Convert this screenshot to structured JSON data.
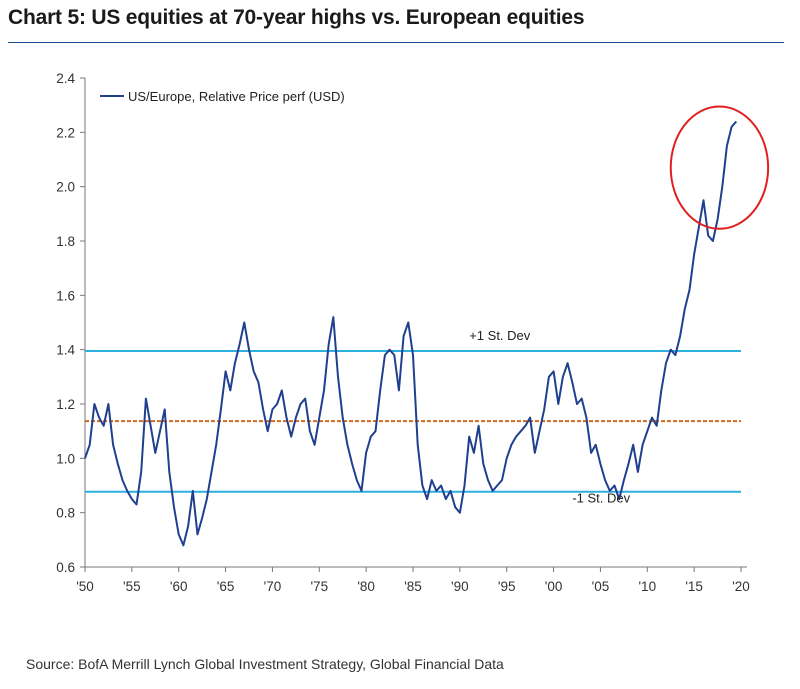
{
  "title": "Chart 5: US equities at 70-year highs vs. European equities",
  "source": "Source: BofA Merrill Lynch Global Investment Strategy, Global Financial Data",
  "chart_data": {
    "type": "line",
    "title": "Chart 5: US equities at 70-year highs vs. European equities",
    "xlabel": "",
    "ylabel": "",
    "xlim": [
      1950,
      2020
    ],
    "ylim": [
      0.6,
      2.4
    ],
    "yticks": [
      0.6,
      0.8,
      1.0,
      1.2,
      1.4,
      1.6,
      1.8,
      2.0,
      2.2,
      2.4
    ],
    "ytick_labels": [
      "0.6",
      "0.8",
      "1.0",
      "1.2",
      "1.4",
      "1.6",
      "1.8",
      "2.0",
      "2.2",
      "2.4"
    ],
    "xticks": [
      1950,
      1955,
      1960,
      1965,
      1970,
      1975,
      1980,
      1985,
      1990,
      1995,
      2000,
      2005,
      2010,
      2015,
      2020
    ],
    "xtick_labels": [
      "'50",
      "'55",
      "'60",
      "'65",
      "'70",
      "'75",
      "'80",
      "'85",
      "'90",
      "'95",
      "'00",
      "'05",
      "'10",
      "'15",
      "'20"
    ],
    "legend_position": "top-left",
    "colors": {
      "series": "#1f3f8f",
      "stdev": "#2bb0e0",
      "mean": "#d2691e",
      "highlight": "#e02020"
    },
    "series": [
      {
        "name": "US/Europe, Relative Price perf (USD)",
        "x": [
          1950,
          1950.5,
          1951,
          1951.5,
          1952,
          1952.5,
          1953,
          1953.5,
          1954,
          1954.5,
          1955,
          1955.5,
          1956,
          1956.5,
          1957,
          1957.5,
          1958,
          1958.5,
          1959,
          1959.5,
          1960,
          1960.5,
          1961,
          1961.5,
          1962,
          1962.5,
          1963,
          1963.5,
          1964,
          1964.5,
          1965,
          1965.5,
          1966,
          1966.5,
          1967,
          1967.5,
          1968,
          1968.5,
          1969,
          1969.5,
          1970,
          1970.5,
          1971,
          1971.5,
          1972,
          1972.5,
          1973,
          1973.5,
          1974,
          1974.5,
          1975,
          1975.5,
          1976,
          1976.5,
          1977,
          1977.5,
          1978,
          1978.5,
          1979,
          1979.5,
          1980,
          1980.5,
          1981,
          1981.5,
          1982,
          1982.5,
          1983,
          1983.5,
          1984,
          1984.5,
          1985,
          1985.5,
          1986,
          1986.5,
          1987,
          1987.5,
          1988,
          1988.5,
          1989,
          1989.5,
          1990,
          1990.5,
          1991,
          1991.5,
          1992,
          1992.5,
          1993,
          1993.5,
          1994,
          1994.5,
          1995,
          1995.5,
          1996,
          1996.5,
          1997,
          1997.5,
          1998,
          1998.5,
          1999,
          1999.5,
          2000,
          2000.5,
          2001,
          2001.5,
          2002,
          2002.5,
          2003,
          2003.5,
          2004,
          2004.5,
          2005,
          2005.5,
          2006,
          2006.5,
          2007,
          2007.5,
          2008,
          2008.5,
          2009,
          2009.5,
          2010,
          2010.5,
          2011,
          2011.5,
          2012,
          2012.5,
          2013,
          2013.5,
          2014,
          2014.5,
          2015,
          2015.5,
          2016,
          2016.5,
          2017,
          2017.5,
          2018,
          2018.5,
          2019,
          2019.5
        ],
        "values": [
          1.0,
          1.05,
          1.2,
          1.15,
          1.12,
          1.2,
          1.05,
          0.98,
          0.92,
          0.88,
          0.85,
          0.83,
          0.95,
          1.22,
          1.12,
          1.02,
          1.1,
          1.18,
          0.95,
          0.82,
          0.72,
          0.68,
          0.75,
          0.88,
          0.72,
          0.78,
          0.85,
          0.95,
          1.05,
          1.18,
          1.32,
          1.25,
          1.35,
          1.42,
          1.5,
          1.4,
          1.32,
          1.28,
          1.18,
          1.1,
          1.18,
          1.2,
          1.25,
          1.15,
          1.08,
          1.15,
          1.2,
          1.22,
          1.1,
          1.05,
          1.15,
          1.25,
          1.42,
          1.52,
          1.3,
          1.15,
          1.05,
          0.98,
          0.92,
          0.88,
          1.02,
          1.08,
          1.1,
          1.25,
          1.38,
          1.4,
          1.38,
          1.25,
          1.45,
          1.5,
          1.38,
          1.05,
          0.9,
          0.85,
          0.92,
          0.88,
          0.9,
          0.85,
          0.88,
          0.82,
          0.8,
          0.9,
          1.08,
          1.02,
          1.12,
          0.98,
          0.92,
          0.88,
          0.9,
          0.92,
          1.0,
          1.05,
          1.08,
          1.1,
          1.12,
          1.15,
          1.02,
          1.1,
          1.18,
          1.3,
          1.32,
          1.2,
          1.3,
          1.35,
          1.28,
          1.2,
          1.22,
          1.15,
          1.02,
          1.05,
          0.98,
          0.92,
          0.88,
          0.9,
          0.85,
          0.92,
          0.98,
          1.05,
          0.95,
          1.05,
          1.1,
          1.15,
          1.12,
          1.25,
          1.35,
          1.4,
          1.38,
          1.45,
          1.55,
          1.62,
          1.75,
          1.85,
          1.95,
          1.82,
          1.8,
          1.88,
          2.0,
          2.15,
          2.22,
          2.24
        ]
      }
    ],
    "reference_lines": [
      {
        "label": "+1 St. Dev",
        "value": 1.395
      },
      {
        "label": "mean",
        "value": 1.137
      },
      {
        "label": "-1 St. Dev",
        "value": 0.877
      }
    ],
    "annotations": [
      {
        "text": "+1 St. Dev",
        "x": 1991,
        "y": 1.435
      },
      {
        "text": "-1 St. Dev",
        "x": 2002,
        "y": 0.837
      }
    ],
    "highlight_circle": {
      "center_x": 2017.7,
      "center_y": 2.07,
      "radius_x_years": 5.2,
      "radius_y": 0.225
    }
  }
}
